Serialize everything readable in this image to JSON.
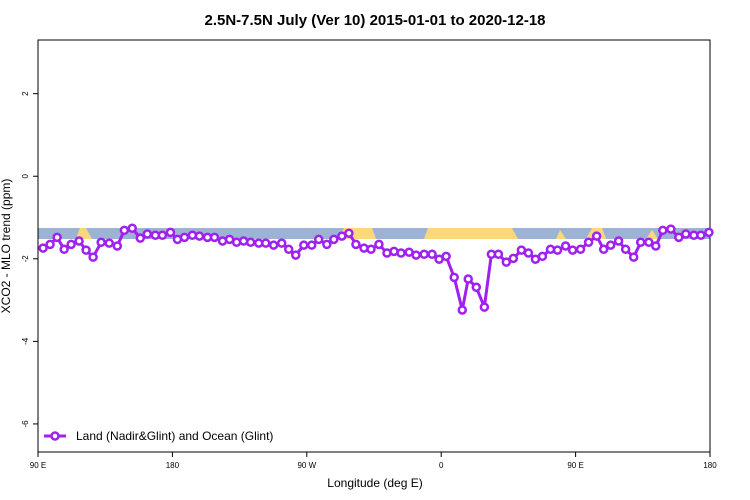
{
  "chart_data": {
    "type": "line",
    "title": "2.5N-7.5N July (Ver 10)   2015-01-01 to 2020-12-18",
    "x_label": "Longitude (deg E)",
    "y_label": "XCO2 - MLO trend (ppm)",
    "xlim": [
      90,
      540
    ],
    "ylim": [
      -6.68,
      3.3
    ],
    "xticks": [
      {
        "value": 90,
        "label": "90 E"
      },
      180,
      {
        "value": 270,
        "label": "90 W"
      },
      {
        "value": 360,
        "label": "0"
      },
      {
        "value": 450,
        "label": "90 E"
      },
      {
        "value": 540,
        "label": "180"
      }
    ],
    "yticks": [
      2,
      0,
      -2,
      -4,
      -6
    ],
    "legend": "bottom-left",
    "series": [
      {
        "name": "Land (Nadir&Glint) and Ocean (Glint)",
        "color": "#a020f0",
        "x": [
          93.4,
          98.1,
          102.8,
          107.5,
          112.2,
          117.5,
          122.2,
          126.9,
          132.3,
          137.7,
          143.1,
          147.8,
          153.1,
          158.5,
          163.2,
          168.6,
          173.3,
          178.7,
          183.4,
          188.1,
          193.4,
          198.1,
          203.5,
          208.2,
          213.6,
          218.3,
          223.0,
          227.7,
          232.4,
          237.8,
          242.5,
          247.8,
          253.2,
          257.9,
          262.6,
          268.0,
          273.3,
          278.0,
          283.4,
          288.1,
          293.5,
          298.2,
          302.9,
          308.3,
          313.0,
          318.3,
          323.7,
          328.4,
          333.1,
          338.5,
          343.2,
          348.6,
          353.9,
          358.6,
          363.3,
          368.7,
          374.1,
          378.1,
          383.5,
          388.9,
          393.6,
          398.3,
          403.6,
          408.3,
          413.7,
          418.4,
          423.1,
          427.8,
          433.2,
          437.9,
          443.3,
          448.0,
          453.3,
          458.7,
          464.1,
          468.8,
          473.5,
          478.8,
          483.5,
          488.9,
          493.6,
          499.0,
          503.7,
          508.4,
          513.8,
          519.1,
          523.8,
          529.2,
          533.9,
          539.3
        ],
        "values": [
          -1.74,
          -1.65,
          -1.48,
          -1.77,
          -1.65,
          -1.57,
          -1.79,
          -1.96,
          -1.6,
          -1.62,
          -1.69,
          -1.31,
          -1.26,
          -1.5,
          -1.4,
          -1.43,
          -1.43,
          -1.36,
          -1.53,
          -1.48,
          -1.43,
          -1.45,
          -1.48,
          -1.48,
          -1.57,
          -1.53,
          -1.6,
          -1.57,
          -1.6,
          -1.62,
          -1.62,
          -1.67,
          -1.62,
          -1.77,
          -1.91,
          -1.67,
          -1.67,
          -1.53,
          -1.65,
          -1.53,
          -1.45,
          -1.38,
          -1.65,
          -1.74,
          -1.77,
          -1.65,
          -1.86,
          -1.82,
          -1.86,
          -1.84,
          -1.91,
          -1.89,
          -1.89,
          -2.01,
          -1.94,
          -2.45,
          -3.24,
          -2.49,
          -2.69,
          -3.17,
          -1.89,
          -1.89,
          -2.08,
          -1.99,
          -1.79,
          -1.86,
          -2.01,
          -1.94,
          -1.77,
          -1.79,
          -1.69,
          -1.79,
          -1.77,
          -1.6,
          -1.45,
          -1.77,
          -1.67,
          -1.57,
          -1.77,
          -1.96,
          -1.6,
          -1.6,
          -1.69,
          -1.31,
          -1.28,
          -1.48,
          -1.4,
          -1.43,
          -1.43,
          -1.36
        ]
      }
    ]
  }
}
